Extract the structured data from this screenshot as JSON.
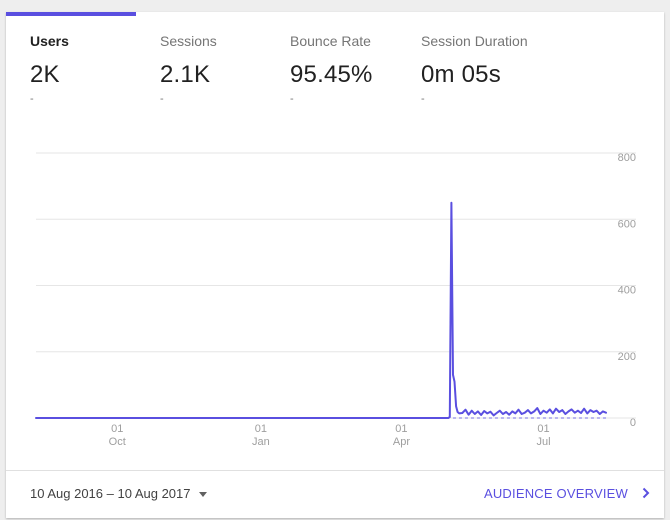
{
  "colors": {
    "accent": "#5a4fe0",
    "link": "#5a4fe0",
    "grid": "#e6e6e6",
    "axis_text": "#9e9e9e"
  },
  "metrics": [
    {
      "label": "Users",
      "value": "2K",
      "delta": "-"
    },
    {
      "label": "Sessions",
      "value": "2.1K",
      "delta": "-"
    },
    {
      "label": "Bounce Rate",
      "value": "95.45%",
      "delta": "-"
    },
    {
      "label": "Session Duration",
      "value": "0m 05s",
      "delta": "-"
    }
  ],
  "chart_data": {
    "type": "line",
    "y_ticks": [
      "800",
      "600",
      "400",
      "200",
      "0"
    ],
    "ylim": [
      0,
      800
    ],
    "xlim": [
      "2016-08-10",
      "2017-08-10"
    ],
    "x_ticks": [
      {
        "day": "01",
        "month": "Oct",
        "date": "2016-10-01"
      },
      {
        "day": "01",
        "month": "Jan",
        "date": "2017-01-01"
      },
      {
        "day": "01",
        "month": "Apr",
        "date": "2017-04-01"
      },
      {
        "day": "01",
        "month": "Jul",
        "date": "2017-07-01"
      }
    ],
    "grid": true,
    "series": [
      {
        "values": [
          [
            "2016-08-10",
            0
          ],
          [
            "2017-05-01",
            0
          ],
          [
            "2017-05-02",
            3
          ],
          [
            "2017-05-03",
            650
          ],
          [
            "2017-05-04",
            130
          ],
          [
            "2017-05-05",
            110
          ],
          [
            "2017-05-06",
            35
          ],
          [
            "2017-05-07",
            18
          ],
          [
            "2017-05-08",
            14
          ],
          [
            "2017-05-10",
            15
          ],
          [
            "2017-05-12",
            25
          ],
          [
            "2017-05-14",
            10
          ],
          [
            "2017-05-16",
            22
          ],
          [
            "2017-05-18",
            12
          ],
          [
            "2017-05-20",
            20
          ],
          [
            "2017-05-22",
            9
          ],
          [
            "2017-05-24",
            21
          ],
          [
            "2017-05-26",
            14
          ],
          [
            "2017-05-28",
            19
          ],
          [
            "2017-05-30",
            8
          ],
          [
            "2017-06-01",
            15
          ],
          [
            "2017-06-03",
            22
          ],
          [
            "2017-06-05",
            12
          ],
          [
            "2017-06-07",
            18
          ],
          [
            "2017-06-09",
            10
          ],
          [
            "2017-06-11",
            20
          ],
          [
            "2017-06-13",
            14
          ],
          [
            "2017-06-15",
            25
          ],
          [
            "2017-06-17",
            12
          ],
          [
            "2017-06-19",
            16
          ],
          [
            "2017-06-21",
            24
          ],
          [
            "2017-06-23",
            14
          ],
          [
            "2017-06-25",
            20
          ],
          [
            "2017-06-27",
            30
          ],
          [
            "2017-06-29",
            12
          ],
          [
            "2017-07-01",
            22
          ],
          [
            "2017-07-03",
            16
          ],
          [
            "2017-07-05",
            26
          ],
          [
            "2017-07-07",
            14
          ],
          [
            "2017-07-09",
            28
          ],
          [
            "2017-07-11",
            18
          ],
          [
            "2017-07-13",
            24
          ],
          [
            "2017-07-15",
            12
          ],
          [
            "2017-07-17",
            20
          ],
          [
            "2017-07-19",
            26
          ],
          [
            "2017-07-21",
            16
          ],
          [
            "2017-07-23",
            22
          ],
          [
            "2017-07-25",
            15
          ],
          [
            "2017-07-27",
            28
          ],
          [
            "2017-07-29",
            14
          ],
          [
            "2017-07-31",
            24
          ],
          [
            "2017-08-02",
            18
          ],
          [
            "2017-08-04",
            22
          ],
          [
            "2017-08-06",
            12
          ],
          [
            "2017-08-08",
            20
          ],
          [
            "2017-08-10",
            16
          ]
        ]
      }
    ],
    "comparison_baseline": {
      "style": "dashed",
      "values": [
        [
          "2017-05-04",
          0
        ],
        [
          "2017-08-10",
          0
        ]
      ]
    }
  },
  "footer": {
    "date_range": "10 Aug 2016 – 10 Aug 2017",
    "link_label": "AUDIENCE OVERVIEW"
  },
  "icons": {
    "date_caret": "caret-down-icon",
    "link_chevron": "chevron-right-icon"
  }
}
